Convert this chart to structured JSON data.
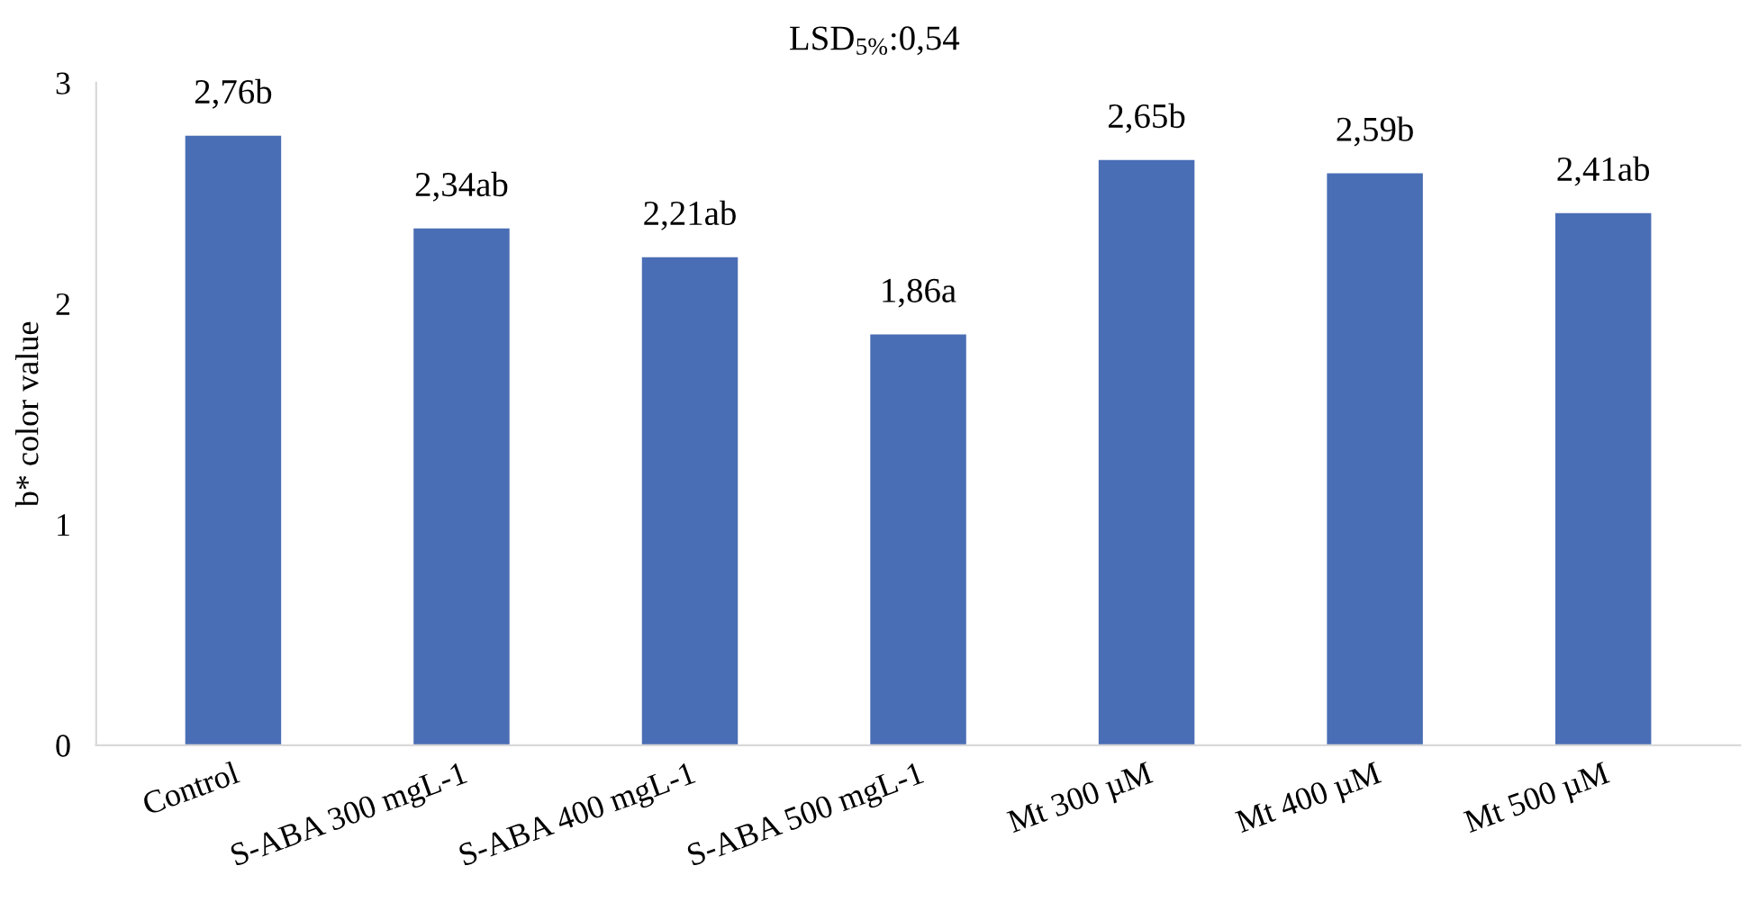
{
  "chart_data": {
    "type": "bar",
    "title": "LSD$_{5%}$:0,54",
    "ylabel": "b* color value",
    "categories": [
      "Control",
      "S-ABA 300 mgL-1",
      "S-ABA 400 mgL-1",
      "S-ABA 500 mgL-1",
      "Mt 300 µM",
      "Mt 400 µM",
      "Mt 500 µM"
    ],
    "values": [
      2.76,
      2.34,
      2.21,
      1.86,
      2.65,
      2.59,
      2.41
    ],
    "value_labels": [
      "2,76b",
      "2,34ab",
      "2,21ab",
      "1,86a",
      "2,65b",
      "2,59b",
      "2,41ab"
    ],
    "color": "#4a6eb5",
    "ylim": [
      0,
      3
    ],
    "yticks": [
      0,
      1,
      2,
      3
    ],
    "grid": false
  }
}
